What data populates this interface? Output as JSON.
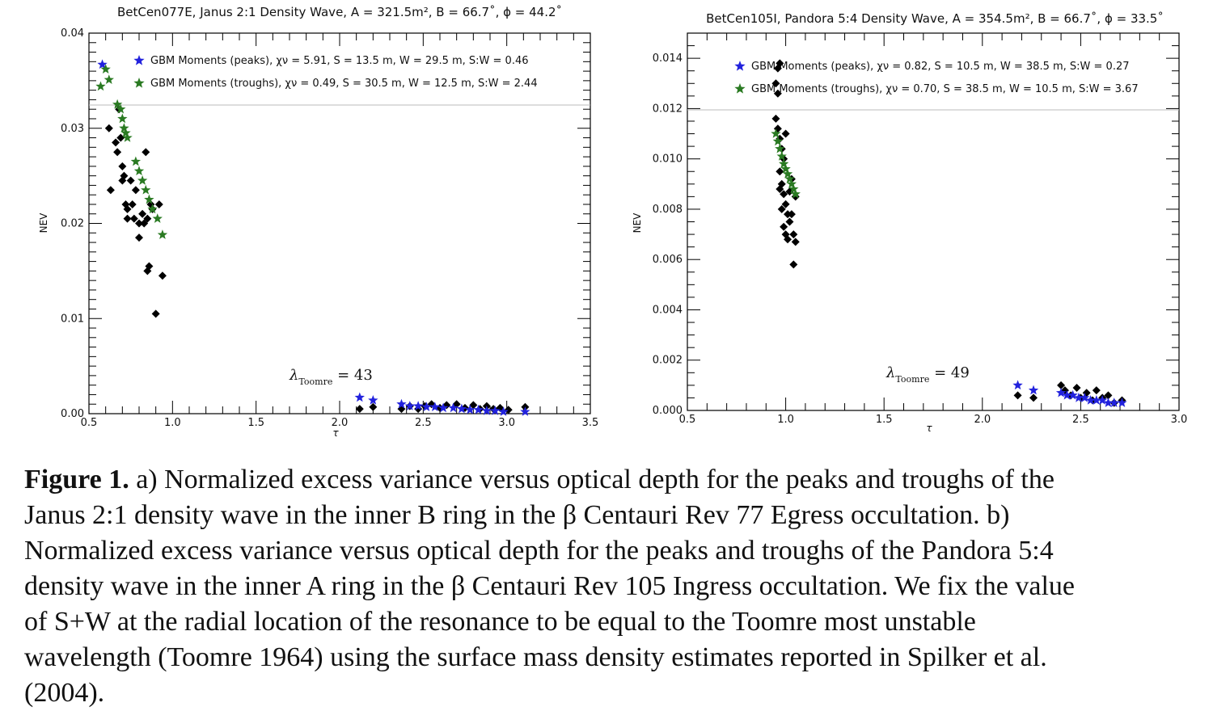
{
  "figure": {
    "panels": [
      {
        "title": "BetCen077E, Janus 2:1 Density Wave, A = 321.5m², B = 66.7˚, ϕ = 44.2˚",
        "lambda_text": "λ_Toomre = 43",
        "lambda_main": "λ",
        "lambda_sub": "Toomre",
        "lambda_val": "= 43",
        "legend": [
          {
            "label": "GBM Moments (peaks), χν = 5.91, S = 13.5 m, W = 29.5 m, S:W = 0.46",
            "color": "#2222dd"
          },
          {
            "label": "GBM Moments (troughs), χν = 0.49, S = 30.5 m, W = 12.5 m, S:W = 2.44",
            "color": "#2a7a22"
          }
        ]
      },
      {
        "title": "BetCen105I, Pandora 5:4 Density Wave, A = 354.5m², B = 66.7˚, ϕ = 33.5˚",
        "lambda_text": "λ_Toomre = 49",
        "lambda_main": "λ",
        "lambda_sub": "Toomre",
        "lambda_val": "= 49",
        "legend": [
          {
            "label": "GBM Moments (peaks), χν = 0.82, S = 10.5 m, W = 38.5 m, S:W = 0.27",
            "color": "#2222dd"
          },
          {
            "label": "GBM Moments (troughs), χν = 0.70, S = 38.5 m, W = 10.5 m, S:W = 3.67",
            "color": "#2a7a22"
          }
        ]
      }
    ]
  },
  "chart_data": [
    {
      "type": "scatter",
      "title": "BetCen077E, Janus 2:1 Density Wave, A = 321.5m², B = 66.7˚, ϕ = 44.2˚",
      "xlabel": "τ",
      "ylabel": "NEV",
      "xlim": [
        0.5,
        3.5
      ],
      "ylim": [
        0.0,
        0.04
      ],
      "xticks": [
        "0.5",
        "1.0",
        "1.5",
        "2.0",
        "2.5",
        "3.0",
        "3.5"
      ],
      "yticks": [
        "0.00",
        "0.01",
        "0.02",
        "0.03",
        "0.04"
      ],
      "annotation": "λ_Toomre = 43",
      "legend_position": "top-left",
      "series": [
        {
          "name": "",
          "marker": "diamond",
          "color": "#000000",
          "points": [
            [
              0.62,
              0.03
            ],
            [
              0.63,
              0.0235
            ],
            [
              0.66,
              0.0285
            ],
            [
              0.67,
              0.0275
            ],
            [
              0.68,
              0.032
            ],
            [
              0.69,
              0.029
            ],
            [
              0.7,
              0.026
            ],
            [
              0.7,
              0.0245
            ],
            [
              0.71,
              0.025
            ],
            [
              0.72,
              0.022
            ],
            [
              0.73,
              0.0205
            ],
            [
              0.73,
              0.0215
            ],
            [
              0.75,
              0.0245
            ],
            [
              0.76,
              0.022
            ],
            [
              0.77,
              0.0205
            ],
            [
              0.78,
              0.0235
            ],
            [
              0.8,
              0.02
            ],
            [
              0.8,
              0.0185
            ],
            [
              0.82,
              0.021
            ],
            [
              0.83,
              0.02
            ],
            [
              0.84,
              0.0275
            ],
            [
              0.85,
              0.0205
            ],
            [
              0.86,
              0.0155
            ],
            [
              0.87,
              0.022
            ],
            [
              0.88,
              0.0215
            ],
            [
              0.9,
              0.0105
            ],
            [
              0.92,
              0.022
            ],
            [
              0.94,
              0.0145
            ],
            [
              0.85,
              0.015
            ],
            [
              2.12,
              0.0005
            ],
            [
              2.2,
              0.0007
            ],
            [
              2.37,
              0.0005
            ],
            [
              2.42,
              0.0008
            ],
            [
              2.47,
              0.0005
            ],
            [
              2.51,
              0.0008
            ],
            [
              2.55,
              0.001
            ],
            [
              2.6,
              0.0006
            ],
            [
              2.64,
              0.0009
            ],
            [
              2.7,
              0.001
            ],
            [
              2.75,
              0.0006
            ],
            [
              2.8,
              0.0009
            ],
            [
              2.84,
              0.0005
            ],
            [
              2.88,
              0.0008
            ],
            [
              2.92,
              0.0005
            ],
            [
              2.96,
              0.0006
            ],
            [
              3.01,
              0.0004
            ],
            [
              3.11,
              0.0007
            ]
          ]
        },
        {
          "name": "GBM Moments (peaks), χν = 5.91, S = 13.5 m, W = 29.5 m, S:W = 0.46",
          "marker": "star",
          "color": "#2222dd",
          "points": [
            [
              0.58,
              0.0367
            ],
            [
              2.12,
              0.0017
            ],
            [
              2.2,
              0.0014
            ],
            [
              2.37,
              0.001
            ],
            [
              2.42,
              0.0008
            ],
            [
              2.47,
              0.0008
            ],
            [
              2.52,
              0.0007
            ],
            [
              2.57,
              0.0007
            ],
            [
              2.62,
              0.0006
            ],
            [
              2.68,
              0.0006
            ],
            [
              2.73,
              0.0005
            ],
            [
              2.78,
              0.0004
            ],
            [
              2.83,
              0.0004
            ],
            [
              2.88,
              0.0003
            ],
            [
              2.93,
              0.0003
            ],
            [
              2.98,
              0.0002
            ],
            [
              3.11,
              0.0002
            ]
          ]
        },
        {
          "name": "GBM Moments (troughs), χν = 0.49, S = 30.5 m, W = 12.5 m, S:W = 2.44",
          "marker": "star",
          "color": "#2a7a22",
          "points": [
            [
              0.57,
              0.0344
            ],
            [
              0.6,
              0.0362
            ],
            [
              0.62,
              0.0351
            ],
            [
              0.67,
              0.0325
            ],
            [
              0.69,
              0.032
            ],
            [
              0.7,
              0.031
            ],
            [
              0.71,
              0.03
            ],
            [
              0.72,
              0.0295
            ],
            [
              0.73,
              0.029
            ],
            [
              0.78,
              0.0265
            ],
            [
              0.8,
              0.0255
            ],
            [
              0.82,
              0.0245
            ],
            [
              0.84,
              0.0235
            ],
            [
              0.86,
              0.0225
            ],
            [
              0.88,
              0.0215
            ],
            [
              0.91,
              0.0205
            ],
            [
              0.94,
              0.0188
            ]
          ]
        }
      ]
    },
    {
      "type": "scatter",
      "title": "BetCen105I, Pandora 5:4 Density Wave, A = 354.5m², B = 66.7˚, ϕ = 33.5˚",
      "xlabel": "τ",
      "ylabel": "NEV",
      "xlim": [
        0.5,
        3.0
      ],
      "ylim": [
        0.0,
        0.015
      ],
      "xticks": [
        "0.5",
        "1.0",
        "1.5",
        "2.0",
        "2.5",
        "3.0"
      ],
      "yticks": [
        "0.000",
        "0.002",
        "0.004",
        "0.006",
        "0.008",
        "0.010",
        "0.012",
        "0.014"
      ],
      "annotation": "λ_Toomre = 49",
      "legend_position": "top-left",
      "series": [
        {
          "name": "",
          "marker": "diamond",
          "color": "#000000",
          "points": [
            [
              0.96,
              0.0136
            ],
            [
              0.97,
              0.0138
            ],
            [
              0.95,
              0.013
            ],
            [
              0.96,
              0.0126
            ],
            [
              0.95,
              0.0116
            ],
            [
              0.96,
              0.0112
            ],
            [
              0.97,
              0.0108
            ],
            [
              0.98,
              0.0104
            ],
            [
              0.99,
              0.01
            ],
            [
              1.0,
              0.011
            ],
            [
              0.97,
              0.0095
            ],
            [
              0.98,
              0.009
            ],
            [
              0.99,
              0.0086
            ],
            [
              1.0,
              0.0082
            ],
            [
              1.01,
              0.0078
            ],
            [
              1.02,
              0.0075
            ],
            [
              0.97,
              0.0088
            ],
            [
              0.98,
              0.008
            ],
            [
              0.99,
              0.0073
            ],
            [
              1.0,
              0.007
            ],
            [
              1.01,
              0.0068
            ],
            [
              1.02,
              0.0087
            ],
            [
              1.03,
              0.0078
            ],
            [
              1.04,
              0.007
            ],
            [
              1.05,
              0.0067
            ],
            [
              1.04,
              0.0058
            ],
            [
              1.03,
              0.0092
            ],
            [
              1.05,
              0.0085
            ],
            [
              2.18,
              0.0006
            ],
            [
              2.26,
              0.0005
            ],
            [
              2.4,
              0.001
            ],
            [
              2.42,
              0.0008
            ],
            [
              2.45,
              0.0006
            ],
            [
              2.48,
              0.0009
            ],
            [
              2.5,
              0.0005
            ],
            [
              2.53,
              0.0007
            ],
            [
              2.56,
              0.0004
            ],
            [
              2.58,
              0.0008
            ],
            [
              2.61,
              0.0005
            ],
            [
              2.64,
              0.0006
            ],
            [
              2.67,
              0.0003
            ],
            [
              2.71,
              0.0004
            ]
          ]
        },
        {
          "name": "GBM Moments (peaks), χν = 0.82, S = 10.5 m, W = 38.5 m, S:W = 0.27",
          "marker": "star",
          "color": "#2222dd",
          "points": [
            [
              2.18,
              0.001
            ],
            [
              2.26,
              0.0008
            ],
            [
              2.4,
              0.0007
            ],
            [
              2.43,
              0.0006
            ],
            [
              2.46,
              0.0006
            ],
            [
              2.49,
              0.0005
            ],
            [
              2.52,
              0.0005
            ],
            [
              2.55,
              0.0004
            ],
            [
              2.58,
              0.0004
            ],
            [
              2.61,
              0.0004
            ],
            [
              2.64,
              0.0003
            ],
            [
              2.67,
              0.0003
            ],
            [
              2.71,
              0.0003
            ]
          ]
        },
        {
          "name": "GBM Moments (troughs), χν = 0.70, S = 38.5 m, W = 10.5 m, S:W = 3.67",
          "marker": "star",
          "color": "#2a7a22",
          "points": [
            [
              0.95,
              0.011
            ],
            [
              0.96,
              0.0107
            ],
            [
              0.97,
              0.0104
            ],
            [
              0.98,
              0.0101
            ],
            [
              0.99,
              0.0098
            ],
            [
              1.0,
              0.0096
            ],
            [
              1.01,
              0.0094
            ],
            [
              1.02,
              0.0092
            ],
            [
              1.03,
              0.009
            ],
            [
              1.04,
              0.0088
            ],
            [
              1.05,
              0.0086
            ]
          ]
        }
      ]
    }
  ],
  "caption": {
    "label": "Figure 1.",
    "lines": [
      "a) Normalized excess variance versus optical depth for the peaks and troughs of the",
      "Janus 2:1 density wave in the inner B ring in the β Centauri Rev 77 Egress occultation. b)",
      "Normalized excess variance versus optical depth for the peaks and troughs of the Pandora 5:4",
      "density wave in the inner A ring in the β Centauri Rev 105 Ingress occultation. We fix the value",
      "of S+W at the radial location of the resonance to be equal to the Toomre most unstable",
      "wavelength (Toomre 1964) using the surface mass density estimates reported in Spilker et al.",
      "(2004)."
    ]
  }
}
